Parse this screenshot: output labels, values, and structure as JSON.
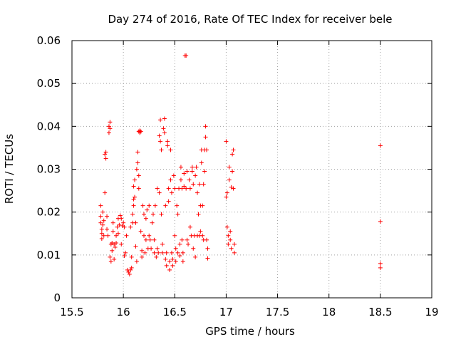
{
  "chart_data": {
    "type": "scatter",
    "title": "Day 274 of 2016, Rate Of TEC Index for receiver bele",
    "xlabel": "GPS time / hours",
    "ylabel": "ROTI / TECUs",
    "xlim": [
      15.5,
      19
    ],
    "ylim": [
      0,
      0.06
    ],
    "xticks": [
      "15.5",
      "16",
      "16.5",
      "17",
      "17.5",
      "18",
      "18.5",
      "19"
    ],
    "yticks": [
      "0",
      "0.01",
      "0.02",
      "0.03",
      "0.04",
      "0.05",
      "0.06"
    ],
    "grid": true,
    "marker": "+",
    "color": "#ff0000",
    "series": [
      {
        "name": "ROTI",
        "points": [
          [
            15.78,
            0.0215
          ],
          [
            15.78,
            0.019
          ],
          [
            15.78,
            0.0175
          ],
          [
            15.79,
            0.016
          ],
          [
            15.79,
            0.015
          ],
          [
            15.79,
            0.0138
          ],
          [
            15.8,
            0.02
          ],
          [
            15.8,
            0.017
          ],
          [
            15.81,
            0.0145
          ],
          [
            15.81,
            0.018
          ],
          [
            15.82,
            0.0245
          ],
          [
            15.82,
            0.0335
          ],
          [
            15.83,
            0.034
          ],
          [
            15.83,
            0.0325
          ],
          [
            15.84,
            0.019
          ],
          [
            15.84,
            0.016
          ],
          [
            15.85,
            0.0145
          ],
          [
            15.86,
            0.0385
          ],
          [
            15.86,
            0.04
          ],
          [
            15.87,
            0.041
          ],
          [
            15.87,
            0.0395
          ],
          [
            15.87,
            0.0095
          ],
          [
            15.88,
            0.0125
          ],
          [
            15.88,
            0.0085
          ],
          [
            15.89,
            0.011
          ],
          [
            15.89,
            0.0128
          ],
          [
            15.9,
            0.0155
          ],
          [
            15.9,
            0.0175
          ],
          [
            15.91,
            0.0125
          ],
          [
            15.91,
            0.009
          ],
          [
            15.92,
            0.0118
          ],
          [
            15.93,
            0.0128
          ],
          [
            15.93,
            0.0145
          ],
          [
            15.94,
            0.0165
          ],
          [
            15.95,
            0.0185
          ],
          [
            15.95,
            0.015
          ],
          [
            15.96,
            0.017
          ],
          [
            15.97,
            0.0192
          ],
          [
            15.98,
            0.0185
          ],
          [
            15.98,
            0.0125
          ],
          [
            15.99,
            0.0168
          ],
          [
            16.0,
            0.0175
          ],
          [
            16.01,
            0.0165
          ],
          [
            16.01,
            0.0098
          ],
          [
            16.02,
            0.0105
          ],
          [
            16.03,
            0.0145
          ],
          [
            16.04,
            0.0065
          ],
          [
            16.05,
            0.006
          ],
          [
            16.06,
            0.0055
          ],
          [
            16.07,
            0.0065
          ],
          [
            16.07,
            0.0165
          ],
          [
            16.08,
            0.0095
          ],
          [
            16.08,
            0.007
          ],
          [
            16.09,
            0.0175
          ],
          [
            16.09,
            0.0195
          ],
          [
            16.1,
            0.0215
          ],
          [
            16.1,
            0.023
          ],
          [
            16.1,
            0.026
          ],
          [
            16.11,
            0.0275
          ],
          [
            16.11,
            0.0235
          ],
          [
            16.12,
            0.0175
          ],
          [
            16.12,
            0.012
          ],
          [
            16.13,
            0.0085
          ],
          [
            16.13,
            0.03
          ],
          [
            16.14,
            0.0315
          ],
          [
            16.14,
            0.034
          ],
          [
            16.15,
            0.0285
          ],
          [
            16.15,
            0.0255
          ],
          [
            16.15,
            0.0388
          ],
          [
            16.16,
            0.039
          ],
          [
            16.16,
            0.0385
          ],
          [
            16.17,
            0.0388
          ],
          [
            16.17,
            0.0155
          ],
          [
            16.18,
            0.011
          ],
          [
            16.18,
            0.0095
          ],
          [
            16.19,
            0.0215
          ],
          [
            16.2,
            0.0195
          ],
          [
            16.2,
            0.0145
          ],
          [
            16.21,
            0.0105
          ],
          [
            16.22,
            0.0135
          ],
          [
            16.22,
            0.0185
          ],
          [
            16.23,
            0.0205
          ],
          [
            16.24,
            0.0115
          ],
          [
            16.25,
            0.0145
          ],
          [
            16.25,
            0.0215
          ],
          [
            16.26,
            0.0135
          ],
          [
            16.27,
            0.0115
          ],
          [
            16.28,
            0.0175
          ],
          [
            16.29,
            0.0195
          ],
          [
            16.3,
            0.0105
          ],
          [
            16.3,
            0.0135
          ],
          [
            16.31,
            0.0215
          ],
          [
            16.32,
            0.0095
          ],
          [
            16.33,
            0.0255
          ],
          [
            16.33,
            0.0115
          ],
          [
            16.34,
            0.0105
          ],
          [
            16.35,
            0.0245
          ],
          [
            16.35,
            0.0378
          ],
          [
            16.36,
            0.0365
          ],
          [
            16.36,
            0.0415
          ],
          [
            16.37,
            0.0345
          ],
          [
            16.37,
            0.0195
          ],
          [
            16.38,
            0.0125
          ],
          [
            16.38,
            0.0105
          ],
          [
            16.39,
            0.0395
          ],
          [
            16.4,
            0.0418
          ],
          [
            16.4,
            0.0385
          ],
          [
            16.41,
            0.0215
          ],
          [
            16.41,
            0.009
          ],
          [
            16.42,
            0.0075
          ],
          [
            16.42,
            0.0105
          ],
          [
            16.43,
            0.0355
          ],
          [
            16.43,
            0.0365
          ],
          [
            16.44,
            0.0225
          ],
          [
            16.44,
            0.0255
          ],
          [
            16.45,
            0.0065
          ],
          [
            16.45,
            0.0085
          ],
          [
            16.46,
            0.0345
          ],
          [
            16.46,
            0.0275
          ],
          [
            16.47,
            0.0245
          ],
          [
            16.47,
            0.0105
          ],
          [
            16.48,
            0.0075
          ],
          [
            16.48,
            0.009
          ],
          [
            16.49,
            0.0285
          ],
          [
            16.5,
            0.0255
          ],
          [
            16.5,
            0.0145
          ],
          [
            16.51,
            0.0115
          ],
          [
            16.51,
            0.0085
          ],
          [
            16.52,
            0.0215
          ],
          [
            16.53,
            0.0195
          ],
          [
            16.53,
            0.0105
          ],
          [
            16.54,
            0.0255
          ],
          [
            16.55,
            0.0125
          ],
          [
            16.55,
            0.0098
          ],
          [
            16.56,
            0.0275
          ],
          [
            16.56,
            0.0305
          ],
          [
            16.57,
            0.0255
          ],
          [
            16.57,
            0.0135
          ],
          [
            16.58,
            0.0105
          ],
          [
            16.58,
            0.0085
          ],
          [
            16.59,
            0.029
          ],
          [
            16.59,
            0.026
          ],
          [
            16.6,
            0.0565
          ],
          [
            16.61,
            0.0565
          ],
          [
            16.61,
            0.0255
          ],
          [
            16.62,
            0.0295
          ],
          [
            16.62,
            0.0135
          ],
          [
            16.63,
            0.0125
          ],
          [
            16.64,
            0.0275
          ],
          [
            16.65,
            0.0255
          ],
          [
            16.65,
            0.0165
          ],
          [
            16.66,
            0.0145
          ],
          [
            16.67,
            0.0305
          ],
          [
            16.67,
            0.0295
          ],
          [
            16.68,
            0.0265
          ],
          [
            16.68,
            0.0115
          ],
          [
            16.69,
            0.0145
          ],
          [
            16.7,
            0.0285
          ],
          [
            16.7,
            0.0095
          ],
          [
            16.71,
            0.0305
          ],
          [
            16.72,
            0.0245
          ],
          [
            16.72,
            0.0145
          ],
          [
            16.73,
            0.0195
          ],
          [
            16.74,
            0.0265
          ],
          [
            16.74,
            0.0145
          ],
          [
            16.75,
            0.0155
          ],
          [
            16.75,
            0.0215
          ],
          [
            16.76,
            0.0345
          ],
          [
            16.76,
            0.0315
          ],
          [
            16.77,
            0.0145
          ],
          [
            16.77,
            0.0215
          ],
          [
            16.78,
            0.0135
          ],
          [
            16.78,
            0.0265
          ],
          [
            16.79,
            0.0345
          ],
          [
            16.79,
            0.0295
          ],
          [
            16.8,
            0.0375
          ],
          [
            16.8,
            0.04
          ],
          [
            16.81,
            0.0345
          ],
          [
            16.81,
            0.0135
          ],
          [
            16.82,
            0.0115
          ],
          [
            16.82,
            0.0092
          ],
          [
            17.0,
            0.0365
          ],
          [
            17.0,
            0.0235
          ],
          [
            17.01,
            0.0245
          ],
          [
            17.01,
            0.0165
          ],
          [
            17.02,
            0.0145
          ],
          [
            17.02,
            0.0125
          ],
          [
            17.03,
            0.0305
          ],
          [
            17.03,
            0.0275
          ],
          [
            17.04,
            0.0155
          ],
          [
            17.04,
            0.0135
          ],
          [
            17.05,
            0.0115
          ],
          [
            17.05,
            0.0258
          ],
          [
            17.06,
            0.0295
          ],
          [
            17.06,
            0.0335
          ],
          [
            17.07,
            0.0345
          ],
          [
            17.07,
            0.0255
          ],
          [
            17.08,
            0.0125
          ],
          [
            17.08,
            0.0105
          ],
          [
            18.5,
            0.0355
          ],
          [
            18.5,
            0.0178
          ],
          [
            18.5,
            0.008
          ],
          [
            18.5,
            0.007
          ]
        ]
      }
    ]
  }
}
